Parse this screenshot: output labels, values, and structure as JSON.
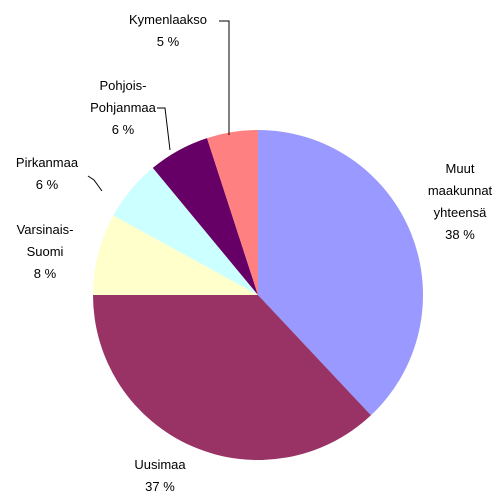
{
  "chart_data": {
    "type": "pie",
    "categories": [
      "Muut\nmaakunnat\nyhteensä",
      "Uusimaa",
      "Varsinais-\nSuomi",
      "Pirkanmaa",
      "Pohjois-\nPohjanmaa",
      "Kymenlaakso"
    ],
    "values": [
      38,
      37,
      8,
      6,
      6,
      5
    ],
    "value_labels": [
      "38 %",
      "37 %",
      "8 %",
      "6 %",
      "6 %",
      "5 %"
    ],
    "colors": [
      "#9999ff",
      "#993366",
      "#ffffcc",
      "#ccffff",
      "#660066",
      "#ff8080"
    ]
  }
}
